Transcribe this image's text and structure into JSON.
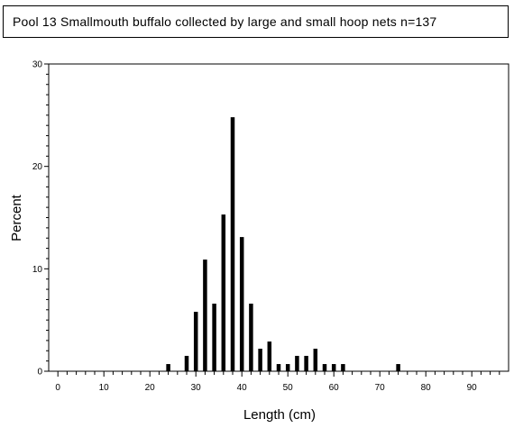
{
  "title": "Pool 13 Smallmouth buffalo collected by large and small hoop nets   n=137",
  "chart_data": {
    "type": "bar",
    "xlabel": "Length (cm)",
    "ylabel": "Percent",
    "xlim": [
      -2,
      98
    ],
    "ylim": [
      0,
      30
    ],
    "x_ticks": [
      0,
      10,
      20,
      30,
      40,
      50,
      60,
      70,
      80,
      90
    ],
    "y_ticks": [
      0,
      10,
      20,
      30
    ],
    "x_minor_step": 2,
    "y_minor_step": 1,
    "grid": false,
    "bar_color": "#000000",
    "x": [
      24,
      28,
      30,
      32,
      34,
      36,
      38,
      40,
      42,
      44,
      46,
      48,
      50,
      52,
      54,
      56,
      58,
      60,
      62,
      74
    ],
    "values": [
      0.7,
      1.5,
      5.8,
      10.9,
      6.6,
      15.3,
      24.8,
      13.1,
      6.6,
      2.2,
      2.9,
      0.7,
      0.7,
      1.5,
      1.5,
      2.2,
      0.7,
      0.7,
      0.7,
      0.7
    ]
  }
}
